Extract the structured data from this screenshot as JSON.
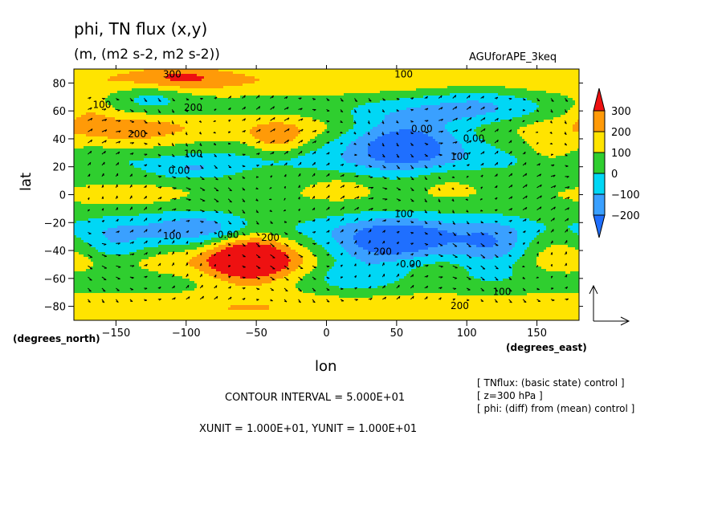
{
  "chart_data": {
    "type": "heatmap",
    "title": "phi, TN flux (x,y)",
    "subtitle": "(m, (m2 s-2, m2 s-2))",
    "run_label": "AGUforAPE_3keq",
    "xlabel": "lon",
    "ylabel": "lat",
    "x_unit_label": "(degrees_east)",
    "y_unit_label": "(degrees_north)",
    "xlim": [
      -180,
      180
    ],
    "ylim": [
      -90,
      90
    ],
    "xticks": [
      -150,
      -100,
      -50,
      0,
      50,
      100,
      150
    ],
    "yticks": [
      -80,
      -60,
      -40,
      -20,
      0,
      20,
      40,
      60,
      80
    ],
    "colorbar": {
      "levels": [
        -200,
        -100,
        0,
        100,
        200,
        300
      ],
      "labels": [
        "−200",
        "−100",
        "0",
        "100",
        "200",
        "300"
      ],
      "colors": [
        "#1f6fff",
        "#3aa0ff",
        "#00d7f5",
        "#2fce2f",
        "#ffe400",
        "#ff9a08",
        "#ee1111"
      ]
    },
    "contour_labels": [
      {
        "text": "300",
        "lon": -110,
        "lat": 84
      },
      {
        "text": "100",
        "lon": 55,
        "lat": 84
      },
      {
        "text": "100",
        "lon": -160,
        "lat": 62
      },
      {
        "text": "200",
        "lon": -95,
        "lat": 60
      },
      {
        "text": "200",
        "lon": -135,
        "lat": 41
      },
      {
        "text": "0.00",
        "lon": 68,
        "lat": 45
      },
      {
        "text": "0.00",
        "lon": 105,
        "lat": 38
      },
      {
        "text": "100",
        "lon": -95,
        "lat": 27
      },
      {
        "text": "0.00",
        "lon": -105,
        "lat": 15
      },
      {
        "text": "100",
        "lon": 95,
        "lat": 25
      },
      {
        "text": "100",
        "lon": 55,
        "lat": -16
      },
      {
        "text": "100",
        "lon": -110,
        "lat": -32
      },
      {
        "text": "0.00",
        "lon": -70,
        "lat": -31
      },
      {
        "text": "200",
        "lon": -40,
        "lat": -33
      },
      {
        "text": "200",
        "lon": 40,
        "lat": -43
      },
      {
        "text": "0.00",
        "lon": 60,
        "lat": -52
      },
      {
        "text": "100",
        "lon": 125,
        "lat": -72
      },
      {
        "text": "200",
        "lon": 95,
        "lat": -82
      }
    ],
    "vector_reference": {
      "x": 10,
      "y": 10
    },
    "contour_interval_text": "CONTOUR INTERVAL = 5.000E+01",
    "unit_text": "XUNIT = 1.000E+01, YUNIT = 1.000E+01",
    "notes": [
      "[ TNflux: (basic state) control ]",
      "[ z=300 hPa ]",
      "[ phi: (diff) from (mean) control ]"
    ]
  }
}
